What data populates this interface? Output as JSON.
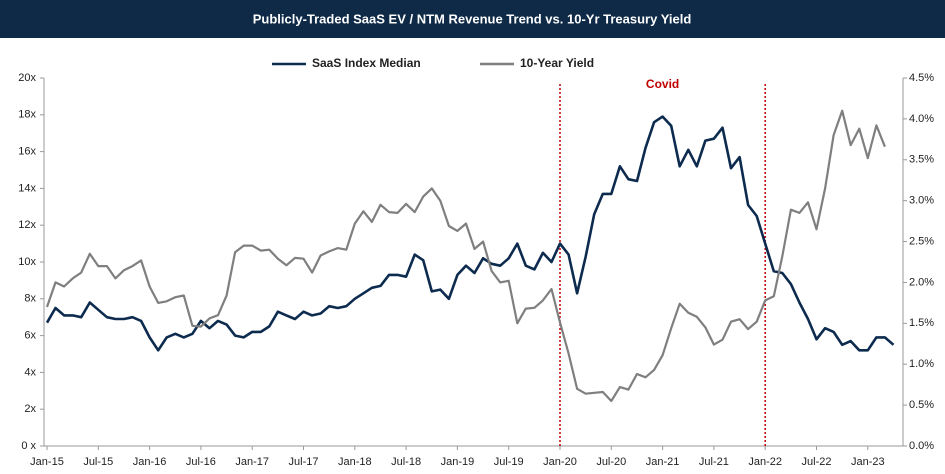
{
  "chart_data": {
    "type": "line",
    "title": "Publicly-Traded SaaS EV / NTM Revenue Trend vs. 10-Yr Treasury Yield",
    "categories": [
      "Jan-15",
      null,
      null,
      null,
      null,
      null,
      "Jul-15",
      null,
      null,
      null,
      null,
      null,
      "Jan-16",
      null,
      null,
      null,
      null,
      null,
      "Jul-16",
      null,
      null,
      null,
      null,
      null,
      "Jan-17",
      null,
      null,
      null,
      null,
      null,
      "Jul-17",
      null,
      null,
      null,
      null,
      null,
      "Jan-18",
      null,
      null,
      null,
      null,
      null,
      "Jul-18",
      null,
      null,
      null,
      null,
      null,
      "Jan-19",
      null,
      null,
      null,
      null,
      null,
      "Jul-19",
      null,
      null,
      null,
      null,
      null,
      "Jan-20",
      null,
      null,
      null,
      null,
      null,
      "Jul-20",
      null,
      null,
      null,
      null,
      null,
      "Jan-21",
      null,
      null,
      null,
      null,
      null,
      "Jul-21",
      null,
      null,
      null,
      null,
      null,
      "Jan-22",
      null,
      null,
      null,
      null,
      null,
      "Jul-22",
      null,
      null,
      null,
      null,
      null,
      "Jan-23",
      null,
      null,
      null
    ],
    "series": [
      {
        "name": "SaaS Index Median",
        "color": "#0d2b4e",
        "axis": "y",
        "values": [
          6.7,
          7.5,
          7.1,
          7.1,
          7.0,
          7.8,
          7.4,
          7.0,
          6.9,
          6.9,
          7.0,
          6.8,
          5.9,
          5.2,
          5.9,
          6.1,
          5.9,
          6.1,
          6.8,
          6.4,
          6.8,
          6.6,
          6.0,
          5.9,
          6.2,
          6.2,
          6.5,
          7.3,
          7.1,
          6.9,
          7.3,
          7.1,
          7.2,
          7.6,
          7.5,
          7.6,
          8.0,
          8.3,
          8.6,
          8.7,
          9.3,
          9.3,
          9.2,
          10.4,
          10.1,
          8.4,
          8.5,
          8.0,
          9.3,
          9.8,
          9.4,
          10.2,
          9.9,
          9.8,
          10.2,
          11.0,
          9.8,
          9.6,
          10.5,
          10.0,
          11.0,
          10.4,
          8.3,
          10.3,
          12.6,
          13.7,
          13.7,
          15.2,
          14.5,
          14.4,
          16.2,
          17.6,
          17.9,
          17.4,
          15.2,
          16.1,
          15.2,
          16.6,
          16.7,
          17.3,
          15.1,
          15.7,
          13.1,
          12.5,
          11.0,
          9.5,
          9.4,
          8.8,
          7.8,
          6.9,
          5.8,
          6.4,
          6.2,
          5.5,
          5.7,
          5.2,
          5.2,
          5.9,
          5.9,
          5.5
        ]
      },
      {
        "name": "10-Year Yield",
        "color": "#7f7f7f",
        "axis": "y2",
        "values": [
          1.7,
          2.0,
          1.95,
          2.05,
          2.12,
          2.35,
          2.2,
          2.2,
          2.05,
          2.15,
          2.2,
          2.27,
          1.95,
          1.75,
          1.77,
          1.82,
          1.84,
          1.47,
          1.46,
          1.56,
          1.6,
          1.84,
          2.37,
          2.45,
          2.45,
          2.39,
          2.4,
          2.29,
          2.21,
          2.3,
          2.29,
          2.12,
          2.33,
          2.38,
          2.42,
          2.4,
          2.72,
          2.87,
          2.74,
          2.95,
          2.86,
          2.85,
          2.96,
          2.86,
          3.05,
          3.15,
          3.0,
          2.69,
          2.63,
          2.72,
          2.41,
          2.5,
          2.14,
          2.0,
          2.02,
          1.5,
          1.68,
          1.69,
          1.78,
          1.92,
          1.51,
          1.13,
          0.7,
          0.64,
          0.65,
          0.66,
          0.55,
          0.72,
          0.69,
          0.88,
          0.84,
          0.93,
          1.11,
          1.44,
          1.74,
          1.63,
          1.58,
          1.45,
          1.24,
          1.3,
          1.52,
          1.55,
          1.43,
          1.52,
          1.78,
          1.83,
          2.32,
          2.89,
          2.85,
          2.98,
          2.65,
          3.15,
          3.8,
          4.1,
          3.68,
          3.88,
          3.52,
          3.92,
          3.66,
          null
        ]
      }
    ],
    "ylim": [
      0,
      20
    ],
    "yticks": [
      {
        "value": 0,
        "label": "0 x"
      },
      {
        "value": 2,
        "label": "2x"
      },
      {
        "value": 4,
        "label": "4x"
      },
      {
        "value": 6,
        "label": "6x"
      },
      {
        "value": 8,
        "label": "8x"
      },
      {
        "value": 10,
        "label": "10x"
      },
      {
        "value": 12,
        "label": "12x"
      },
      {
        "value": 14,
        "label": "14x"
      },
      {
        "value": 16,
        "label": "16x"
      },
      {
        "value": 18,
        "label": "18x"
      },
      {
        "value": 20,
        "label": "20x"
      }
    ],
    "y2lim": [
      0,
      4.5
    ],
    "y2ticks": [
      {
        "value": 0,
        "label": "0.0%"
      },
      {
        "value": 0.5,
        "label": "0.5%"
      },
      {
        "value": 1,
        "label": "1.0%"
      },
      {
        "value": 1.5,
        "label": "1.5%"
      },
      {
        "value": 2,
        "label": "2.0%"
      },
      {
        "value": 2.5,
        "label": "2.5%"
      },
      {
        "value": 3,
        "label": "3.0%"
      },
      {
        "value": 3.5,
        "label": "3.5%"
      },
      {
        "value": 4,
        "label": "4.0%"
      },
      {
        "value": 4.5,
        "label": "4.5%"
      }
    ],
    "annotation": {
      "text": "Covid",
      "start": "Jan-20",
      "end": "Jan-22",
      "color": "#c00000"
    },
    "grid": false
  }
}
